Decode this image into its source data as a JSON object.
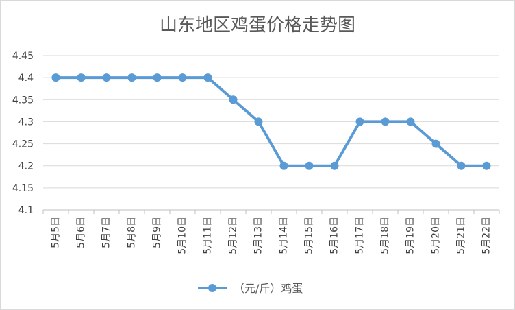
{
  "chart_data": {
    "type": "line",
    "title": "山东地区鸡蛋价格走势图",
    "xlabel": "",
    "ylabel": "",
    "categories": [
      "5月5日",
      "5月6日",
      "5月7日",
      "5月8日",
      "5月9日",
      "5月10日",
      "5月11日",
      "5月12日",
      "5月13日",
      "5月14日",
      "5月15日",
      "5月16日",
      "5月17日",
      "5月18日",
      "5月19日",
      "5月20日",
      "5月21日",
      "5月22日"
    ],
    "series": [
      {
        "name": "（元/斤）鸡蛋",
        "values": [
          4.4,
          4.4,
          4.4,
          4.4,
          4.4,
          4.4,
          4.4,
          4.35,
          4.3,
          4.2,
          4.2,
          4.2,
          4.3,
          4.3,
          4.3,
          4.25,
          4.2,
          4.2
        ]
      }
    ],
    "ylim": [
      4.1,
      4.45
    ],
    "yticks": [
      "4.1",
      "4.15",
      "4.2",
      "4.25",
      "4.3",
      "4.35",
      "4.4",
      "4.45"
    ],
    "grid": true,
    "legend_position": "bottom",
    "colors": {
      "series": "#5b9bd5",
      "grid": "#d9d9d9",
      "axis": "#bfbfbf"
    }
  }
}
